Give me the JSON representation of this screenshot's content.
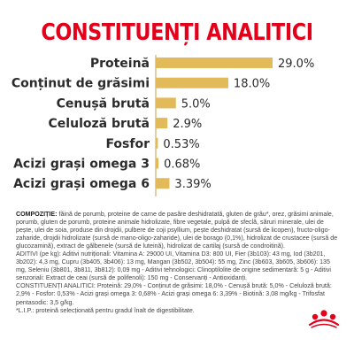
{
  "title": "CONSTITUENȚI ANALITICI",
  "chart_data": {
    "type": "bar",
    "orientation": "horizontal",
    "title": "CONSTITUENȚI ANALITICI",
    "categories": [
      "Proteină",
      "Conținut de grăsimi",
      "Cenușă brută",
      "Celuloză brută",
      "Fosfor",
      "Acizi grași omega 3",
      "Acizi grași omega 6"
    ],
    "values": [
      29.0,
      18.0,
      5.0,
      2.9,
      0.53,
      0.68,
      3.39
    ],
    "value_labels": [
      "29.0%",
      "18.0%",
      "5.0%",
      "2.9%",
      "0.53%",
      "0.68%",
      "3.39%"
    ],
    "unit": "%",
    "xlim": [
      0,
      29.0
    ],
    "grid": false,
    "bar_color": "#e2ba59",
    "label_color": "#2b2b2b"
  },
  "composition": {
    "heading": "COMPOZIȚIE:",
    "text": "făină de porumb, proteine de carne de pasăre deshidratată, gluten de grâu*, orez, grăsimi animale, porumb, gluten de porumb, proteine animale hidrolizate, fibre vegetale, pulpă de sfeclă, săruri minerale, ulei de pește, ulei de soia, produse din drojdii, pulbere de coji psyllium, pește deshidratat (sursă de licopen), fructo-oligo-zaharide, drojdii hidrolizate (sursă de mano-oligo-zaharide), ulei de borago (0,1%), hidrolizat de crustacee (sursă de glucozamină), extract de gălbenele (sursă de luteină), hidrolizat de cartilaj (sursă de condroitină).",
    "additives": "ADITIVI (pe kg): Aditivi nutriționali: Vitamina A: 29000 UI, Vitamina D3: 800 UI, Fier (3b103): 43 mg, Iod (3b201, 3b202): 4,3 mg, Cupru (3b405, 3b406): 13 mg, Mangan (3b502, 3b504): 55 mg, Zinc (3b603, 3b605, 3b606): 135 mg, Seleniu (3b801, 3b811, 3b812): 0,09 mg - Aditivi tehnologici: Clinoptilolite de origine sedimentară: 5 g - Aditivi senzoriali: Extract de ceai (sursă de polifenoli): 150 mg - Conservanți - Antioxidanți.",
    "analytic": "CONSTITUENȚI ANALITICI: Proteină: 29,0% - Conținut de grăsimi: 18,0% - Cenușă brută: 5,0% - Celuloză brută: 2,9% - Fosfor: 0,53% - Acizi grași omega 3: 0,68% - Acizi grași omega 6: 3,39% - Biotină: 3,08 mg/kg - Trifosfat pentasodic: 3,5 g/kg.",
    "footnote": "*L.I.P.: proteină selecționată pentru gradul înalt de digestibilitate."
  },
  "logo": {
    "icon": "royal-canin-crown-logo",
    "color": "#e3001b"
  }
}
